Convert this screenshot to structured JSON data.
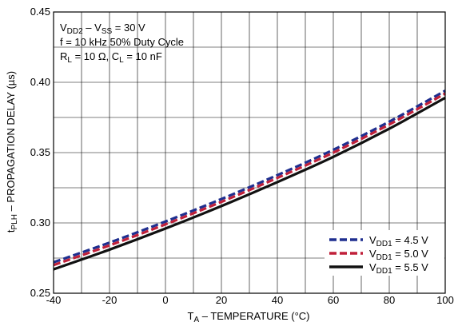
{
  "chart_data": {
    "type": "line",
    "ylabel": {
      "main": "t",
      "sub": "PLH",
      "rest": " – PROPAGATION DELAY (µs)"
    },
    "xlabel": {
      "main": "T",
      "sub": "A",
      "rest": " – TEMPERATURE (°C)"
    },
    "xlim": [
      -40,
      100
    ],
    "ylim": [
      0.25,
      0.45
    ],
    "xticks": [
      -40,
      -20,
      0,
      20,
      40,
      60,
      80,
      100
    ],
    "yticks": [
      0.25,
      0.3,
      0.35,
      0.4,
      0.45
    ],
    "x_tick_labels": [
      "-40",
      "-20",
      "0",
      "20",
      "40",
      "60",
      "80",
      "100"
    ],
    "y_tick_labels": [
      "0.25",
      "0.30",
      "0.35",
      "0.40",
      "0.45"
    ],
    "grid": true,
    "legend_position": "bottom-right",
    "annotations": [
      [
        {
          "t": "V"
        },
        {
          "t": "DD2",
          "sub": true
        },
        {
          "t": " – V"
        },
        {
          "t": "SS",
          "sub": true
        },
        {
          "t": " = 30 V"
        }
      ],
      [
        {
          "t": "f = 10 kHz 50% Duty Cycle"
        }
      ],
      [
        {
          "t": "R"
        },
        {
          "t": "L",
          "sub": true
        },
        {
          "t": " = 10 Ω, C"
        },
        {
          "t": "L",
          "sub": true
        },
        {
          "t": " = 10 nF"
        }
      ]
    ],
    "series": [
      {
        "label_main": "V",
        "label_sub": "DD1",
        "label_rest": " = 4.5 V",
        "color": "#1f2f8f",
        "dash": true,
        "x": [
          -40,
          -20,
          0,
          20,
          40,
          60,
          80,
          100
        ],
        "y": [
          0.272,
          0.286,
          0.301,
          0.317,
          0.334,
          0.352,
          0.372,
          0.394
        ]
      },
      {
        "label_main": "V",
        "label_sub": "DD1",
        "label_rest": " = 5.0 V",
        "color": "#c0203a",
        "dash": true,
        "x": [
          -40,
          -20,
          0,
          20,
          40,
          60,
          80,
          100
        ],
        "y": [
          0.27,
          0.284,
          0.299,
          0.315,
          0.332,
          0.35,
          0.37,
          0.392
        ]
      },
      {
        "label_main": "V",
        "label_sub": "DD1",
        "label_rest": " = 5.5 V",
        "color": "#111111",
        "dash": false,
        "x": [
          -40,
          -20,
          0,
          20,
          40,
          60,
          80,
          100
        ],
        "y": [
          0.267,
          0.281,
          0.296,
          0.312,
          0.329,
          0.347,
          0.367,
          0.389
        ]
      }
    ]
  }
}
